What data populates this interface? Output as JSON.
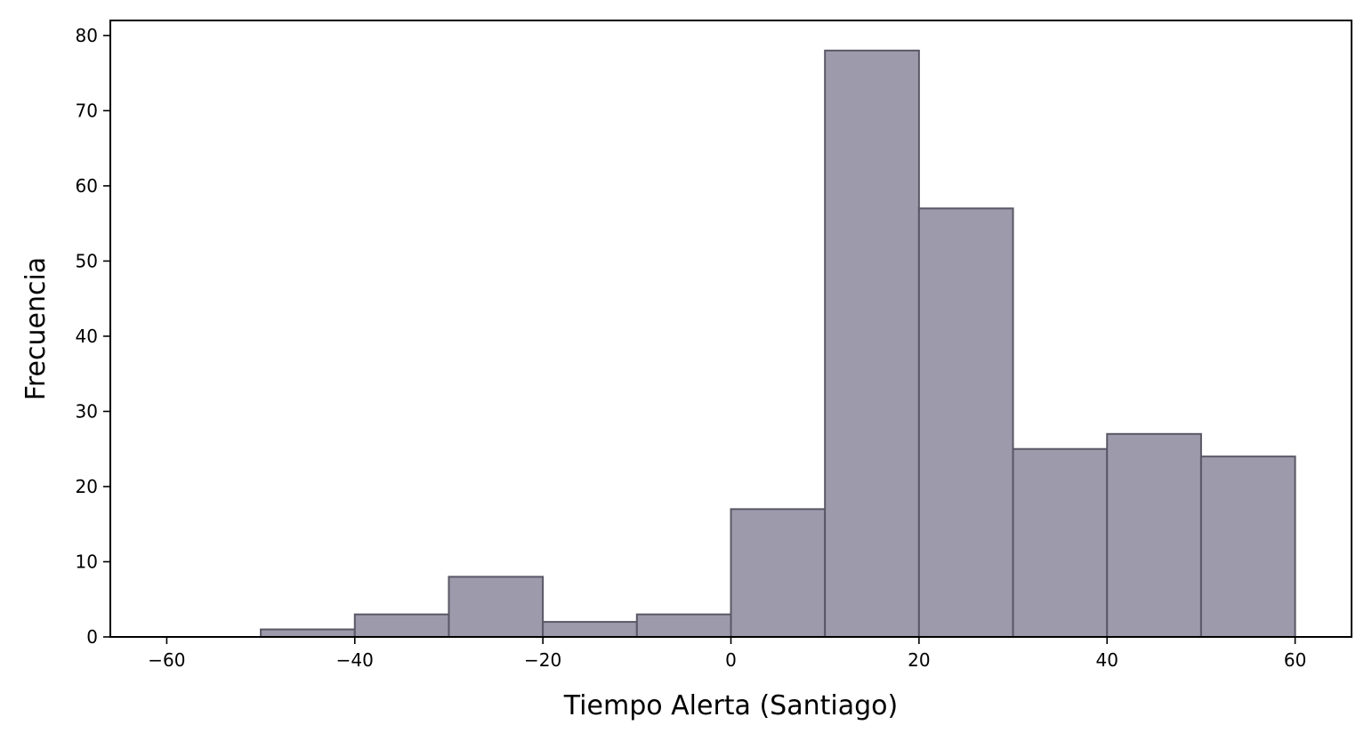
{
  "chart_data": {
    "type": "bar",
    "subtype": "histogram",
    "title": "",
    "xlabel": "Tiempo Alerta (Santiago)",
    "ylabel": "Frecuencia",
    "bins": [
      {
        "start": -50,
        "end": -40,
        "count": 1
      },
      {
        "start": -40,
        "end": -30,
        "count": 3
      },
      {
        "start": -30,
        "end": -20,
        "count": 8
      },
      {
        "start": -20,
        "end": -10,
        "count": 2
      },
      {
        "start": -10,
        "end": 0,
        "count": 3
      },
      {
        "start": 0,
        "end": 10,
        "count": 17
      },
      {
        "start": 10,
        "end": 20,
        "count": 78
      },
      {
        "start": 20,
        "end": 30,
        "count": 57
      },
      {
        "start": 30,
        "end": 40,
        "count": 25
      },
      {
        "start": 40,
        "end": 50,
        "count": 27
      },
      {
        "start": 50,
        "end": 60,
        "count": 24
      }
    ],
    "xlim": [
      -66,
      66
    ],
    "ylim": [
      0,
      82
    ],
    "xticks": [
      -60,
      -40,
      -20,
      0,
      20,
      40,
      60
    ],
    "xtick_labels": [
      "−60",
      "−40",
      "−20",
      "0",
      "20",
      "40",
      "60"
    ],
    "yticks": [
      0,
      10,
      20,
      30,
      40,
      50,
      60,
      70,
      80
    ],
    "ytick_labels": [
      "0",
      "10",
      "20",
      "30",
      "40",
      "50",
      "60",
      "70",
      "80"
    ],
    "grid": false,
    "legend": null,
    "bar_color": "#9d9aab",
    "edge_color": "#5a5866"
  }
}
